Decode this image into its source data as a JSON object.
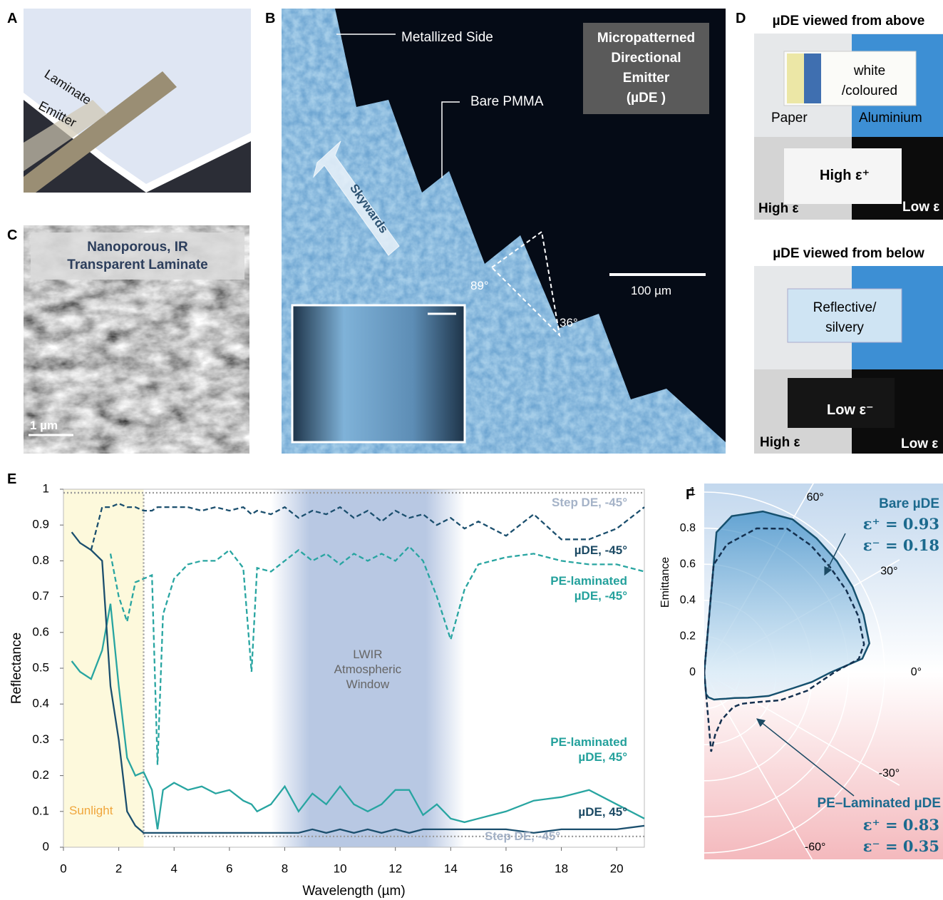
{
  "panel_labels": [
    "A",
    "B",
    "C",
    "D",
    "E",
    "F"
  ],
  "panel_a": {
    "labels": [
      "Laminate",
      "Emitter"
    ]
  },
  "panel_b": {
    "annotations": [
      "Metallized Side",
      "Bare PMMA"
    ],
    "arrow": "Skywards",
    "angles": [
      "89°",
      "36°"
    ],
    "title": [
      "Micropatterned",
      "Directional",
      "Emitter",
      "(µDE )"
    ],
    "scale_bar": "100 µm"
  },
  "panel_c": {
    "title": [
      "Nanoporous, IR",
      "Transparent Laminate"
    ],
    "scale_bar": "1 µm"
  },
  "panel_d": {
    "top": {
      "heading": "µDE viewed from above",
      "sample": [
        "white",
        "/coloured"
      ],
      "left": "Paper",
      "right": "Aluminium",
      "center": "High ε⁺",
      "left_ir": "High ε",
      "right_ir": "Low ε"
    },
    "bottom": {
      "heading": "µDE viewed from below",
      "sample": [
        "Reflective/",
        "silvery"
      ],
      "center": "Low ε⁻",
      "left_ir": "High ε",
      "right_ir": "Low ε"
    }
  },
  "chart_data": [
    {
      "type": "line",
      "x_label": "Wavelength (µm)",
      "y_label": "Reflectance",
      "xlim": [
        0,
        21
      ],
      "ylim": [
        0,
        1
      ],
      "xticks": [
        0,
        2,
        4,
        6,
        8,
        10,
        12,
        14,
        16,
        18,
        20
      ],
      "yticks": [
        0,
        0.1,
        0.2,
        0.3,
        0.4,
        0.5,
        0.6,
        0.7,
        0.8,
        0.9,
        1
      ],
      "bands": [
        {
          "label": "Sunlight",
          "range": [
            0,
            2.9
          ],
          "color": "#fdf9dc"
        },
        {
          "label": "LWIR Atmospheric Window",
          "range": [
            7.5,
            14.5
          ],
          "color": "#b8c8e3"
        }
      ],
      "x": [
        0.3,
        0.6,
        1,
        1.4,
        1.7,
        2,
        2.3,
        2.6,
        2.9,
        3.2,
        3.4,
        3.6,
        4,
        4.5,
        5,
        5.5,
        6,
        6.5,
        6.8,
        7,
        7.5,
        8,
        8.5,
        9,
        9.5,
        10,
        10.5,
        11,
        11.5,
        12,
        12.5,
        13,
        13.5,
        14,
        14.5,
        15,
        16,
        17,
        18,
        19,
        20,
        21
      ],
      "series": [
        {
          "name": "Step DE, -45°",
          "color": "#9a9a9a",
          "dash": "dotted",
          "x": [
            0,
            21
          ],
          "values": [
            0.99,
            0.99
          ]
        },
        {
          "name": "Step DE, -45°",
          "color": "#9a9a9a",
          "dash": "dotted",
          "x": [
            0,
            2.9,
            2.9,
            21
          ],
          "values": [
            0.99,
            0.99,
            0.03,
            0.03
          ]
        },
        {
          "name": "µDE, -45°",
          "color": "#1b4f6e",
          "dash": "dashed",
          "values": [
            null,
            null,
            0.83,
            0.95,
            0.95,
            0.96,
            0.95,
            0.95,
            0.94,
            0.94,
            0.95,
            0.95,
            0.95,
            0.95,
            0.94,
            0.95,
            0.94,
            0.95,
            0.93,
            0.94,
            0.93,
            0.95,
            0.92,
            0.94,
            0.93,
            0.95,
            0.92,
            0.94,
            0.91,
            0.94,
            0.92,
            0.93,
            0.9,
            0.92,
            0.89,
            0.91,
            0.87,
            0.93,
            0.86,
            0.86,
            0.89,
            0.95
          ]
        },
        {
          "name": "PE-laminated µDE, -45°",
          "color": "#28a5a1",
          "dash": "dashed",
          "values": [
            null,
            null,
            null,
            null,
            0.82,
            0.7,
            0.63,
            0.74,
            0.75,
            0.76,
            0.23,
            0.65,
            0.75,
            0.79,
            0.8,
            0.8,
            0.83,
            0.78,
            0.49,
            0.78,
            0.77,
            0.8,
            0.83,
            0.8,
            0.82,
            0.79,
            0.82,
            0.8,
            0.82,
            0.8,
            0.84,
            0.8,
            0.7,
            0.58,
            0.72,
            0.79,
            0.81,
            0.82,
            0.8,
            0.79,
            0.79,
            0.77
          ]
        },
        {
          "name": "PE-laminated µDE, 45°",
          "color": "#28a5a1",
          "dash": "solid",
          "values": [
            0.52,
            0.49,
            0.47,
            0.55,
            0.68,
            0.45,
            0.25,
            0.2,
            0.21,
            0.16,
            0.05,
            0.16,
            0.18,
            0.16,
            0.17,
            0.15,
            0.16,
            0.13,
            0.12,
            0.1,
            0.12,
            0.17,
            0.1,
            0.15,
            0.12,
            0.17,
            0.12,
            0.1,
            0.12,
            0.16,
            0.16,
            0.09,
            0.12,
            0.08,
            0.07,
            0.08,
            0.1,
            0.13,
            0.14,
            0.16,
            0.12,
            0.08
          ]
        },
        {
          "name": "µDE, 45°",
          "color": "#1b4f6e",
          "dash": "solid",
          "values": [
            0.88,
            0.85,
            0.83,
            0.8,
            0.45,
            0.3,
            0.1,
            0.06,
            0.04,
            0.04,
            0.04,
            0.04,
            0.04,
            0.04,
            0.04,
            0.04,
            0.04,
            0.04,
            0.04,
            0.04,
            0.04,
            0.04,
            0.04,
            0.05,
            0.04,
            0.05,
            0.04,
            0.05,
            0.04,
            0.05,
            0.04,
            0.05,
            0.05,
            0.05,
            0.05,
            0.05,
            0.05,
            0.04,
            0.05,
            0.05,
            0.05,
            0.06
          ]
        }
      ]
    },
    {
      "type": "polar",
      "r_label": "Emittance",
      "rlim": [
        0,
        1
      ],
      "rticks": [
        0,
        0.2,
        0.4,
        0.6,
        0.8,
        1
      ],
      "thetaticks": [
        {
          "value": 60,
          "label": "60°"
        },
        {
          "value": 30,
          "label": "30°"
        },
        {
          "value": 0,
          "label": "0°"
        },
        {
          "value": -30,
          "label": "-30°"
        },
        {
          "value": -60,
          "label": "-60°"
        }
      ],
      "theta": [
        90,
        85,
        80,
        70,
        60,
        50,
        40,
        30,
        20,
        10,
        5,
        0,
        -5,
        -10,
        -20,
        -30,
        -40,
        -50,
        -60,
        -70,
        -80,
        -85,
        -90
      ],
      "series": [
        {
          "name": "Bare µDE",
          "color": "#16506e",
          "dash": "solid",
          "filled": true,
          "labels": [
            "ε⁺ = 0.93",
            "ε⁻ = 0.18"
          ],
          "values": [
            0,
            0.78,
            0.88,
            0.95,
            0.98,
            0.97,
            0.96,
            0.95,
            0.94,
            0.93,
            0.88,
            0.7,
            0.6,
            0.5,
            0.38,
            0.28,
            0.22,
            0.19,
            0.17,
            0.16,
            0.14,
            0.12,
            0
          ]
        },
        {
          "name": "PE–Laminated µDE",
          "color": "#14304f",
          "dash": "dashed",
          "filled": false,
          "labels": [
            "ε⁺ = 0.83",
            "ε⁻ = 0.35"
          ],
          "values": [
            0,
            0.6,
            0.72,
            0.85,
            0.92,
            0.92,
            0.91,
            0.91,
            0.91,
            0.9,
            0.86,
            0.72,
            0.64,
            0.58,
            0.45,
            0.33,
            0.27,
            0.25,
            0.26,
            0.28,
            0.35,
            0.44,
            0
          ]
        }
      ]
    }
  ]
}
